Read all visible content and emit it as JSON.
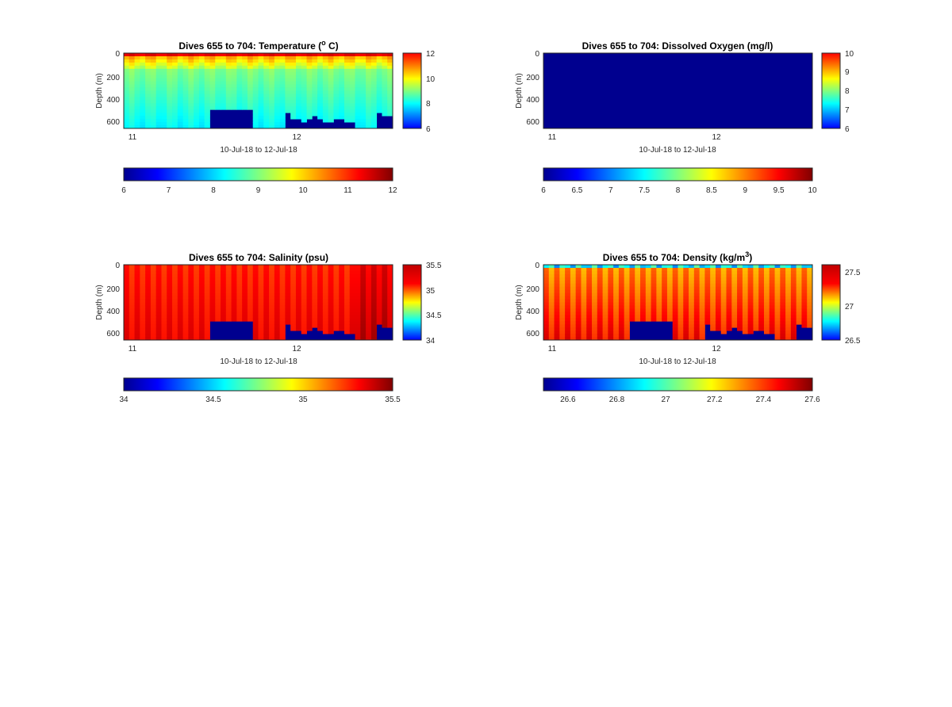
{
  "chart_data": [
    {
      "type": "heatmap",
      "title": "Dives 655 to 704: Temperature (",
      "title_unit": "o",
      "title_end": " C)",
      "xlabel": "10-Jul-18 to 12-Jul-18",
      "ylabel": "Depth (m)",
      "x_ticks": [
        "11",
        "12"
      ],
      "y_ticks": [
        "0",
        "200",
        "400",
        "600"
      ],
      "ylim": [
        0,
        680
      ],
      "clim": [
        6,
        12
      ],
      "colorbar_ticks": [
        "6",
        "8",
        "10",
        "12"
      ],
      "h_colorbar_ticks": [
        "6",
        "7",
        "8",
        "9",
        "10",
        "11",
        "12"
      ],
      "colormap": "jet",
      "nodata_color": "#00008f",
      "n_dives": 50,
      "profile": {
        "surface": 11.8,
        "mixed_layer_depth": 40,
        "mid": 9.0,
        "deep": 8.2
      },
      "bottom_depth_per_dive": [
        680,
        680,
        680,
        680,
        680,
        680,
        680,
        680,
        680,
        680,
        680,
        680,
        680,
        680,
        680,
        680,
        500,
        500,
        500,
        500,
        500,
        500,
        500,
        500,
        680,
        680,
        680,
        680,
        680,
        680,
        540,
        600,
        600,
        630,
        600,
        580,
        600,
        610,
        610,
        600,
        600,
        610,
        620,
        680,
        680,
        680,
        680,
        550,
        560,
        580
      ]
    },
    {
      "type": "heatmap",
      "title": "Dives 655 to 704: Dissolved Oxygen (mg/l)",
      "xlabel": "10-Jul-18 to 12-Jul-18",
      "ylabel": "Depth (m)",
      "x_ticks": [
        "11",
        "12"
      ],
      "y_ticks": [
        "0",
        "200",
        "400",
        "600"
      ],
      "ylim": [
        0,
        680
      ],
      "clim": [
        6,
        10
      ],
      "colorbar_ticks": [
        "6",
        "7",
        "8",
        "9",
        "10"
      ],
      "h_colorbar_ticks": [
        "6",
        "6.5",
        "7",
        "7.5",
        "8",
        "8.5",
        "9",
        "9.5",
        "10"
      ],
      "colormap": "jet",
      "uniform_value": 6
    },
    {
      "type": "heatmap",
      "title": "Dives 655 to 704: Salinity (psu)",
      "xlabel": "10-Jul-18 to 12-Jul-18",
      "ylabel": "Depth (m)",
      "x_ticks": [
        "11",
        "12"
      ],
      "y_ticks": [
        "0",
        "200",
        "400",
        "600"
      ],
      "ylim": [
        0,
        680
      ],
      "clim": [
        34,
        35.5
      ],
      "colorbar_ticks": [
        "34",
        "34.5",
        "35",
        "35.5"
      ],
      "h_colorbar_ticks": [
        "34",
        "34.5",
        "35",
        "35.5"
      ],
      "colormap": "jet",
      "nodata_color": "#00008f",
      "n_dives": 50,
      "profile": {
        "surface": 35.25,
        "mid": 35.28,
        "deep": 35.32
      }
    },
    {
      "type": "heatmap",
      "title": "Dives 655 to 704: Density (kg/m",
      "title_unit": "3",
      "title_end": ")",
      "xlabel": "10-Jul-18 to 12-Jul-18",
      "ylabel": "Depth (m)",
      "x_ticks": [
        "11",
        "12"
      ],
      "y_ticks": [
        "0",
        "200",
        "400",
        "600"
      ],
      "ylim": [
        0,
        680
      ],
      "clim": [
        26.5,
        27.6
      ],
      "colorbar_ticks": [
        "26.5",
        "27",
        "27.5"
      ],
      "h_colorbar_ticks": [
        "26.6",
        "26.8",
        "27",
        "27.2",
        "27.4",
        "27.6"
      ],
      "colormap": "jet",
      "nodata_color": "#00008f",
      "n_dives": 50,
      "profile": {
        "surface": 26.9,
        "mid": 27.3,
        "deep": 27.45
      }
    }
  ]
}
